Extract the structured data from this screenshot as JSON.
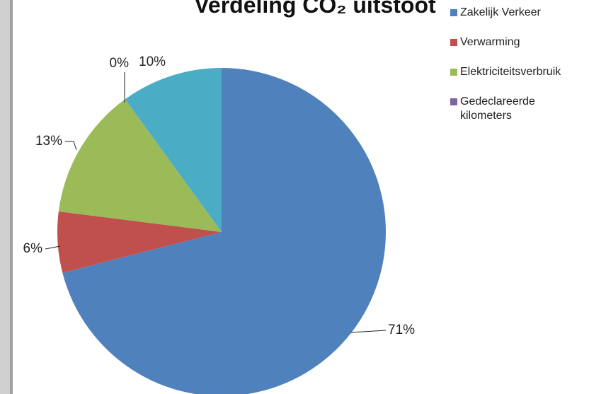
{
  "chart_data": {
    "type": "pie",
    "title": "Verdeling CO₂ uitstoot",
    "categories": [
      "Zakelijk Verkeer",
      "Verwarming",
      "Elektriciteitsverbruik",
      "Gedeclareerde kilometers",
      null
    ],
    "values": [
      71,
      6,
      13,
      0,
      10
    ],
    "value_labels": [
      "71%",
      "6%",
      "13%",
      "0%",
      "10%"
    ],
    "colors": [
      "#4f81bd",
      "#c0504d",
      "#9bbb59",
      "#8064a2",
      "#4bacc6"
    ],
    "legend": "right"
  }
}
